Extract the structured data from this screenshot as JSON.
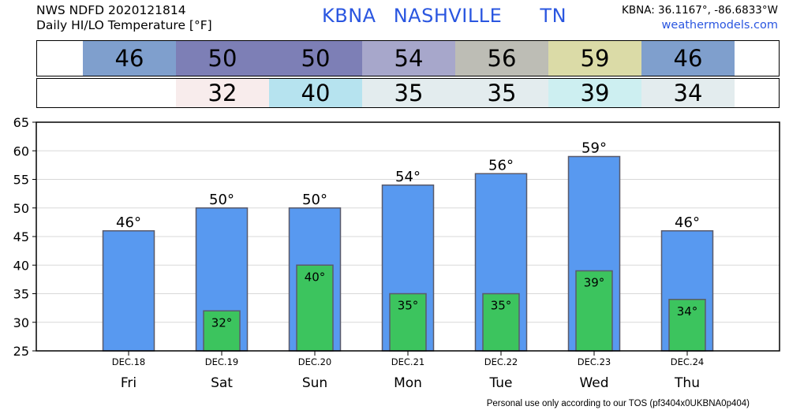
{
  "header": {
    "source": "NWS NDFD 2020121814",
    "subtitle": "Daily HI/LO Temperature [°F]",
    "station_code": "KBNA",
    "station_name": "NASHVILLE",
    "state": "TN",
    "coords": "KBNA: 36.1167°, -86.6833°W",
    "site": "weathermodels.com"
  },
  "hi_strip": [
    {
      "text": "46",
      "color": "#7f9fcd"
    },
    {
      "text": "50",
      "color": "#7d7fb6"
    },
    {
      "text": "50",
      "color": "#7d7fb6"
    },
    {
      "text": "54",
      "color": "#a7a7cb"
    },
    {
      "text": "56",
      "color": "#bdbdb5"
    },
    {
      "text": "59",
      "color": "#dbdba7"
    },
    {
      "text": "46",
      "color": "#7f9fcd"
    }
  ],
  "lo_strip": [
    {
      "text": "",
      "color": "#ffffff"
    },
    {
      "text": "32",
      "color": "#f8ecec"
    },
    {
      "text": "40",
      "color": "#b6e3ef"
    },
    {
      "text": "35",
      "color": "#e3ecee"
    },
    {
      "text": "35",
      "color": "#e3ecee"
    },
    {
      "text": "39",
      "color": "#cdeff1"
    },
    {
      "text": "34",
      "color": "#e3ecee"
    }
  ],
  "chart_data": {
    "type": "bar",
    "categories": [
      "Fri",
      "Sat",
      "Sun",
      "Mon",
      "Tue",
      "Wed",
      "Thu"
    ],
    "dates": [
      "DEC.18",
      "DEC.19",
      "DEC.20",
      "DEC.21",
      "DEC.22",
      "DEC.23",
      "DEC.24"
    ],
    "series": [
      {
        "values": [
          46,
          50,
          50,
          54,
          56,
          59,
          46
        ],
        "color": "#5899f0"
      },
      {
        "values": [
          null,
          32,
          40,
          35,
          35,
          39,
          34
        ],
        "color": "#3cc45e"
      }
    ],
    "hi_labels": [
      "46°",
      "50°",
      "50°",
      "54°",
      "56°",
      "59°",
      "46°"
    ],
    "lo_labels": [
      "",
      "32°",
      "40°",
      "35°",
      "35°",
      "39°",
      "34°"
    ],
    "ylim": [
      25,
      65
    ],
    "yticks": [
      25,
      30,
      35,
      40,
      45,
      50,
      55,
      60,
      65
    ],
    "grid": true
  },
  "footer": "Personal use only according to our TOS (pf3404x0UKBNA0p404)"
}
